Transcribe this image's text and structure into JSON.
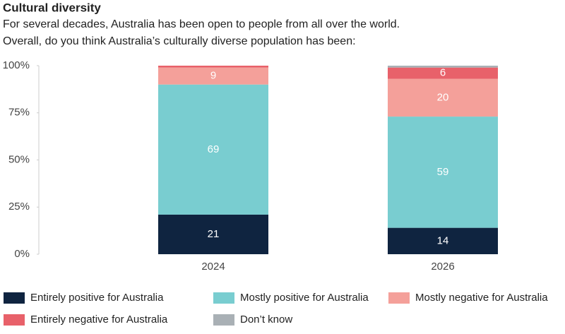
{
  "chart_data": {
    "type": "stacked-bar",
    "title": "Cultural diversity",
    "subtitle": [
      "For several decades, Australia has been open to people from all over the world.",
      "Overall, do you think Australia’s culturally diverse population has been:"
    ],
    "categories": [
      "2024",
      "2026"
    ],
    "series": [
      {
        "name": "Entirely positive for Australia",
        "color": "#0f2440",
        "values": [
          21,
          14
        ]
      },
      {
        "name": "Mostly positive for Australia",
        "color": "#79cdd0",
        "values": [
          69,
          59
        ]
      },
      {
        "name": "Mostly negative for Australia",
        "color": "#f4a09a",
        "values": [
          9,
          20
        ]
      },
      {
        "name": "Entirely negative for Australia",
        "color": "#e8616a",
        "values": [
          1,
          6
        ]
      },
      {
        "name": "Don’t know",
        "color": "#a9b0b5",
        "values": [
          0,
          1
        ]
      }
    ],
    "ylim": [
      0,
      100
    ],
    "yticks": [
      {
        "value": 0,
        "label": "0%"
      },
      {
        "value": 25,
        "label": "25%"
      },
      {
        "value": 50,
        "label": "50%"
      },
      {
        "value": 75,
        "label": "75%"
      },
      {
        "value": 100,
        "label": "100%"
      }
    ]
  }
}
